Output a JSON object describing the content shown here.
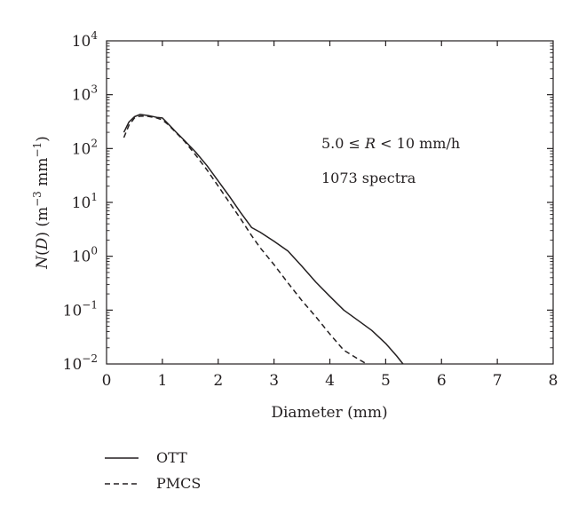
{
  "chart_data": {
    "type": "line",
    "xlabel": "Diameter (mm)",
    "ylabel_parts": {
      "n": "N",
      "open": "(",
      "d": "D",
      "close": ")",
      "units_open": " (m",
      "exp1": "−3",
      "mm": " mm",
      "exp2": "−1",
      "units_close": ")"
    },
    "xlim": [
      0,
      8
    ],
    "ylim": [
      0.01,
      10000
    ],
    "yscale": "log",
    "grid": false,
    "legend_position": "bottom-left",
    "x_ticks": [
      "0",
      "1",
      "2",
      "3",
      "4",
      "5",
      "6",
      "7",
      "8"
    ],
    "y_ticks": [
      {
        "value": 0.01,
        "base": "10",
        "exp": "−2"
      },
      {
        "value": 0.1,
        "base": "10",
        "exp": "−1"
      },
      {
        "value": 1,
        "base": "10",
        "exp": "0"
      },
      {
        "value": 10,
        "base": "10",
        "exp": "1"
      },
      {
        "value": 100,
        "base": "10",
        "exp": "2"
      },
      {
        "value": 1000,
        "base": "10",
        "exp": "3"
      },
      {
        "value": 10000,
        "base": "10",
        "exp": "4"
      }
    ],
    "annotations": {
      "line1_a": "5.0 ≤ ",
      "line1_r": "R",
      "line1_b": " < 10 mm/h",
      "line2": "1073 spectra"
    },
    "series": [
      {
        "name": "OTT",
        "style": "solid",
        "x": [
          0.31,
          0.4,
          0.5,
          0.6,
          0.75,
          0.9,
          1.0,
          1.1,
          1.25,
          1.4,
          1.6,
          1.8,
          2.0,
          2.2,
          2.4,
          2.6,
          2.75,
          3.0,
          3.25,
          3.5,
          3.75,
          4.0,
          4.25,
          4.5,
          4.75,
          5.0,
          5.2,
          5.31
        ],
        "y": [
          200,
          310,
          390,
          430,
          410,
          380,
          370,
          290,
          200,
          140,
          85,
          48,
          25,
          13,
          6.5,
          3.4,
          2.8,
          1.9,
          1.25,
          0.65,
          0.33,
          0.18,
          0.1,
          0.065,
          0.042,
          0.024,
          0.014,
          0.01
        ]
      },
      {
        "name": "PMCS",
        "style": "dashed",
        "x": [
          0.31,
          0.4,
          0.5,
          0.6,
          0.75,
          0.9,
          1.0,
          1.1,
          1.25,
          1.4,
          1.6,
          1.8,
          2.0,
          2.2,
          2.4,
          2.6,
          2.75,
          3.0,
          3.25,
          3.5,
          3.75,
          4.0,
          4.25,
          4.5,
          4.66
        ],
        "y": [
          160,
          270,
          370,
          400,
          395,
          370,
          340,
          280,
          195,
          135,
          75,
          40,
          20,
          10,
          5,
          2.4,
          1.45,
          0.7,
          0.32,
          0.15,
          0.075,
          0.036,
          0.018,
          0.0125,
          0.01
        ]
      }
    ]
  },
  "colors": {
    "ink": "#231f20",
    "background": "#ffffff"
  }
}
